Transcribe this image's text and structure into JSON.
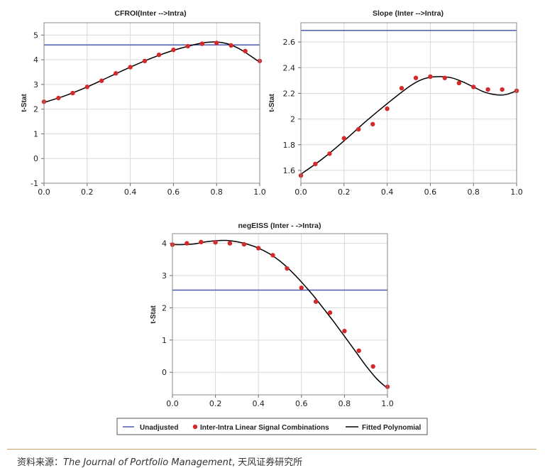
{
  "colors": {
    "unadjusted": "#4a5aa8",
    "points": "#d42a2a",
    "fit": "#000000",
    "grid": "#d9d9d9",
    "rule": "#c9a46a"
  },
  "legend": {
    "unadjusted": "Unadjusted",
    "points": "Inter-Intra Linear Signal Combinations",
    "fit": "Fitted Polynomial"
  },
  "source": {
    "prefix": "资料来源：",
    "journal": "The Journal of Portfolio Management",
    "suffix": ", 天风证券研究所"
  },
  "chart_data": [
    {
      "type": "scatter",
      "title": "CFROI(Inter -->Intra)",
      "ylabel": "t-Stat",
      "xlim": [
        0,
        1
      ],
      "ylim": [
        -1,
        5.5
      ],
      "yticks": [
        5,
        4,
        3,
        2,
        1,
        0,
        -1
      ],
      "xticks": [
        "0.0",
        "0.2",
        "0.4",
        "0.6",
        "0.8",
        "1.0"
      ],
      "unadjusted": 4.6,
      "points": {
        "x": [
          0,
          0.067,
          0.133,
          0.2,
          0.267,
          0.333,
          0.4,
          0.467,
          0.533,
          0.6,
          0.667,
          0.733,
          0.8,
          0.867,
          0.933,
          1.0
        ],
        "y": [
          2.3,
          2.45,
          2.65,
          2.9,
          3.15,
          3.45,
          3.7,
          3.95,
          4.2,
          4.4,
          4.55,
          4.65,
          4.68,
          4.58,
          4.35,
          3.95
        ]
      },
      "fit": {
        "x": [
          0,
          0.1,
          0.2,
          0.3,
          0.4,
          0.5,
          0.6,
          0.7,
          0.75,
          0.8,
          0.85,
          0.9,
          0.95,
          1.0
        ],
        "y": [
          2.27,
          2.55,
          2.9,
          3.3,
          3.7,
          4.07,
          4.38,
          4.62,
          4.7,
          4.72,
          4.65,
          4.47,
          4.2,
          3.9
        ]
      }
    },
    {
      "type": "scatter",
      "title": "Slope (Inter -->Intra)",
      "ylabel": "t-Stat",
      "xlim": [
        0,
        1
      ],
      "ylim": [
        1.5,
        2.75
      ],
      "yticks": [
        2.6,
        2.4,
        2.2,
        2.0,
        1.8,
        1.6
      ],
      "xticks": [
        "0.0",
        "0.2",
        "0.4",
        "0.6",
        "0.8",
        "1.0"
      ],
      "unadjusted": 2.69,
      "points": {
        "x": [
          0,
          0.067,
          0.133,
          0.2,
          0.267,
          0.333,
          0.4,
          0.467,
          0.533,
          0.6,
          0.667,
          0.733,
          0.8,
          0.867,
          0.933,
          1.0
        ],
        "y": [
          1.56,
          1.65,
          1.73,
          1.85,
          1.92,
          1.96,
          2.08,
          2.24,
          2.32,
          2.33,
          2.32,
          2.28,
          2.25,
          2.23,
          2.23,
          2.22
        ]
      },
      "fit": {
        "x": [
          0,
          0.1,
          0.2,
          0.3,
          0.4,
          0.5,
          0.55,
          0.6,
          0.65,
          0.7,
          0.75,
          0.8,
          0.85,
          0.9,
          0.95,
          1.0
        ],
        "y": [
          1.57,
          1.69,
          1.83,
          1.98,
          2.12,
          2.25,
          2.3,
          2.325,
          2.33,
          2.32,
          2.29,
          2.25,
          2.21,
          2.19,
          2.19,
          2.22
        ]
      }
    },
    {
      "type": "scatter",
      "title": "negEISS (Inter - ->Intra)",
      "ylabel": "t-Stat",
      "xlim": [
        0,
        1
      ],
      "ylim": [
        -0.7,
        4.3
      ],
      "yticks": [
        4,
        3,
        2,
        1,
        0
      ],
      "xticks": [
        "0.0",
        "0.2",
        "0.4",
        "0.6",
        "0.8",
        "1.0"
      ],
      "unadjusted": 2.55,
      "points": {
        "x": [
          0,
          0.067,
          0.133,
          0.2,
          0.267,
          0.333,
          0.4,
          0.467,
          0.533,
          0.6,
          0.667,
          0.733,
          0.8,
          0.867,
          0.933,
          1.0
        ],
        "y": [
          3.96,
          4.0,
          4.04,
          4.03,
          4.0,
          3.97,
          3.85,
          3.63,
          3.22,
          2.62,
          2.19,
          1.85,
          1.28,
          0.67,
          0.18,
          -0.45
        ]
      },
      "fit": {
        "x": [
          0,
          0.05,
          0.1,
          0.15,
          0.2,
          0.25,
          0.3,
          0.35,
          0.4,
          0.45,
          0.5,
          0.55,
          0.6,
          0.65,
          0.7,
          0.75,
          0.8,
          0.85,
          0.9,
          0.95,
          1.0
        ],
        "y": [
          3.96,
          3.96,
          3.98,
          4.04,
          4.08,
          4.09,
          4.05,
          3.97,
          3.85,
          3.68,
          3.45,
          3.15,
          2.8,
          2.42,
          2.0,
          1.57,
          1.12,
          0.66,
          0.2,
          -0.2,
          -0.5
        ]
      }
    }
  ]
}
